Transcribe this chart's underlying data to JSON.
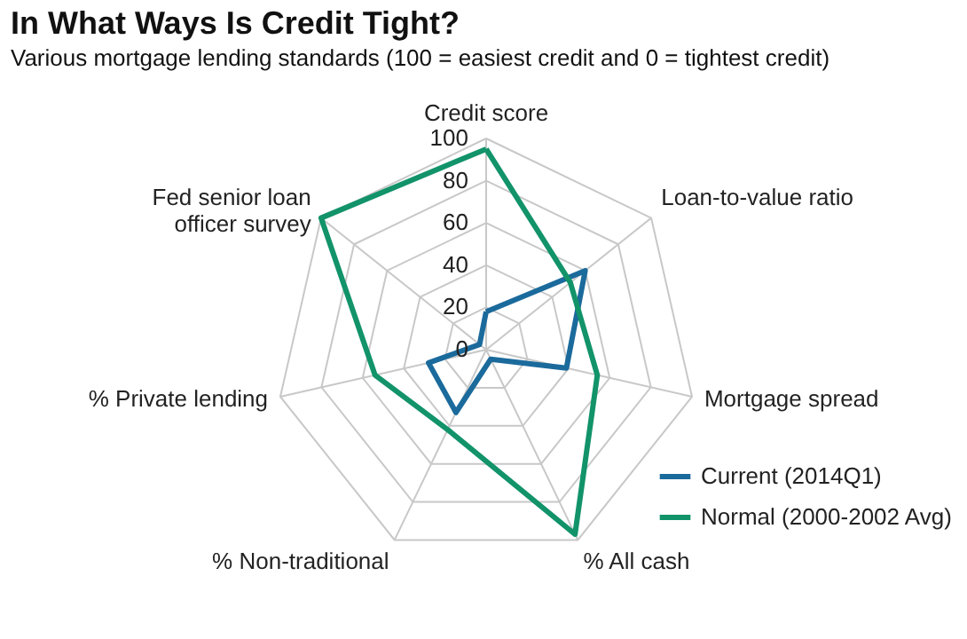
{
  "chart_data": {
    "type": "radar",
    "title": "In What Ways Is Credit Tight?",
    "subtitle": "Various mortgage lending standards (100 = easiest credit and 0 = tightest credit)",
    "categories": [
      "Credit score",
      "Loan-to-value ratio",
      "Mortgage spread",
      "% All cash",
      "% Non-traditional",
      "% Private lending",
      "Fed senior loan officer survey"
    ],
    "series": [
      {
        "name": "Current (2014Q1)",
        "color": "#1b6a9c",
        "values": [
          18,
          60,
          39,
          5,
          33,
          28,
          4
        ]
      },
      {
        "name": "Normal (2000-2002 Avg)",
        "color": "#12936a",
        "values": [
          95,
          51,
          54,
          97,
          42,
          54,
          100
        ]
      }
    ],
    "ylim": [
      0,
      100
    ],
    "yticks": [
      0,
      20,
      40,
      60,
      80,
      100
    ],
    "grid": true,
    "legend": "right",
    "marker": "none",
    "line_style": "solid"
  }
}
